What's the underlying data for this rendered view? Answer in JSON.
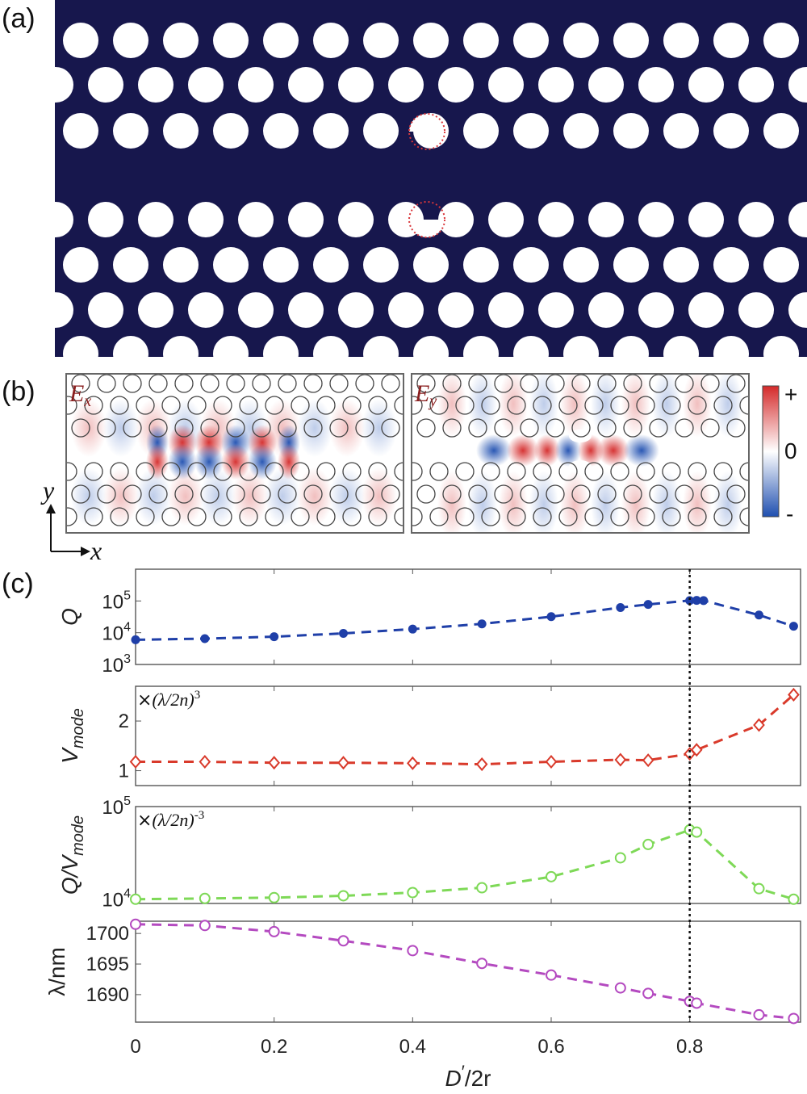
{
  "panel_labels": {
    "a": "(a)",
    "b": "(b)",
    "c": "(c)"
  },
  "panel_b": {
    "field_labels": {
      "ex_main": "E",
      "ex_sub": "x",
      "ey_main": "E",
      "ey_sub": "y"
    },
    "axes": {
      "x": "x",
      "y": "y"
    },
    "colorbar": {
      "plus": "+",
      "zero": "0",
      "minus": "-",
      "colors": [
        "#1f4fb0",
        "#ffffff",
        "#d42a2a"
      ]
    }
  },
  "colors": {
    "slab": "#17174d",
    "hole": "#ffffff",
    "marker_ring": "#d9363a"
  },
  "chart_data": [
    {
      "type": "line",
      "ylabel": "Q",
      "yscale": "log",
      "ylim": [
        1000,
        1000000
      ],
      "ytick_labels": [
        {
          "base": "10",
          "exp": "3"
        },
        {
          "base": "10",
          "exp": "4"
        },
        {
          "base": "10",
          "exp": "5"
        }
      ],
      "marker": "filled-circle",
      "color": "#1f3fa8",
      "x": [
        0,
        0.1,
        0.2,
        0.3,
        0.4,
        0.5,
        0.6,
        0.7,
        0.74,
        0.8,
        0.81,
        0.82,
        0.9,
        0.95
      ],
      "y": [
        6000,
        6500,
        7500,
        9500,
        13000,
        19000,
        32000,
        62000,
        78000,
        103000,
        104000,
        103000,
        36000,
        16000
      ]
    },
    {
      "type": "line",
      "ylabel": "V",
      "ylabel_sub": "mode",
      "unit_prefix": "×",
      "unit": "(λ/2n)",
      "unit_exp": "3",
      "ylim": [
        0.7,
        2.7
      ],
      "yticks": [
        1,
        2
      ],
      "marker": "open-diamond",
      "color": "#d93a2b",
      "x": [
        0,
        0.1,
        0.2,
        0.3,
        0.4,
        0.5,
        0.6,
        0.7,
        0.74,
        0.8,
        0.81,
        0.9,
        0.95
      ],
      "y": [
        1.18,
        1.18,
        1.16,
        1.16,
        1.15,
        1.13,
        1.18,
        1.22,
        1.21,
        1.34,
        1.42,
        1.92,
        2.53
      ]
    },
    {
      "type": "line",
      "ylabel": "Q/V",
      "ylabel_sub": "mode",
      "yscale": "log",
      "unit_prefix": "×",
      "unit": "(λ/2n)",
      "unit_exp": "-3",
      "ylim": [
        9000,
        100000
      ],
      "ytick_labels": [
        {
          "base": "10",
          "exp": "4"
        },
        {
          "base": "10",
          "exp": "5"
        }
      ],
      "marker": "open-circle",
      "color": "#7ed957",
      "x": [
        0,
        0.1,
        0.2,
        0.3,
        0.4,
        0.5,
        0.6,
        0.7,
        0.74,
        0.8,
        0.81,
        0.9,
        0.95
      ],
      "y": [
        10000,
        10200,
        10400,
        10900,
        11800,
        13300,
        17500,
        28000,
        39000,
        56000,
        53000,
        13000,
        10000
      ]
    },
    {
      "type": "line",
      "ylabel": "λ/nm",
      "ylim": [
        1685.5,
        1702
      ],
      "yticks": [
        1690,
        1695,
        1700
      ],
      "marker": "open-circle",
      "color": "#b44ac0",
      "x": [
        0,
        0.1,
        0.2,
        0.3,
        0.4,
        0.5,
        0.6,
        0.7,
        0.74,
        0.8,
        0.81,
        0.9,
        0.95
      ],
      "y": [
        1701.5,
        1701.3,
        1700.3,
        1698.8,
        1697.2,
        1695.1,
        1693.2,
        1691.1,
        1690.2,
        1688.9,
        1688.6,
        1686.7,
        1686.1
      ]
    }
  ],
  "shared_x": {
    "label_main": "D",
    "label_rest": "/2r",
    "xlim": [
      0,
      0.96
    ],
    "ticks": [
      "0",
      "0.2",
      "0.4",
      "0.6",
      "0.8"
    ],
    "tick_values": [
      0,
      0.2,
      0.4,
      0.6,
      0.8
    ],
    "marked_x": 0.8
  }
}
